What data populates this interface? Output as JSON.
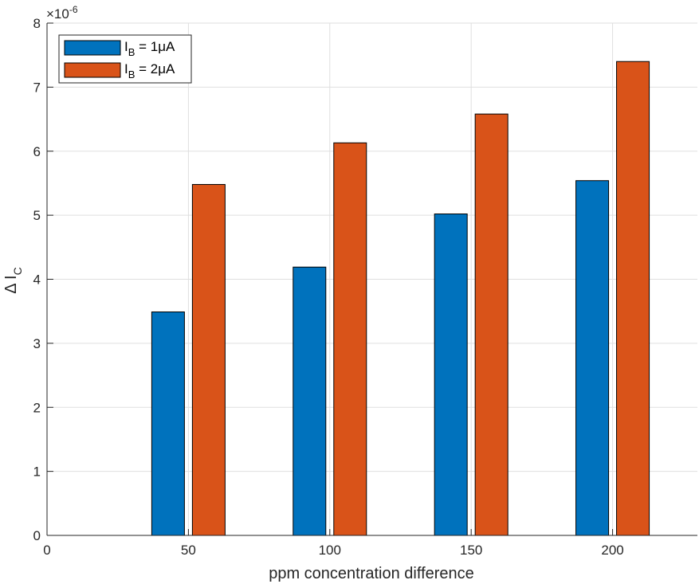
{
  "chart_data": {
    "type": "bar",
    "categories": [
      50,
      100,
      150,
      200
    ],
    "series": [
      {
        "name": "I_B = 1μA",
        "label_main": "I",
        "label_sub": "B",
        "label_rest": " = 1μA",
        "color": "#0072BD",
        "values": [
          3.49e-06,
          4.19e-06,
          5.02e-06,
          5.54e-06
        ]
      },
      {
        "name": "I_B = 2μA",
        "label_main": "I",
        "label_sub": "B",
        "label_rest": " = 2μA",
        "color": "#D95319",
        "values": [
          5.48e-06,
          6.13e-06,
          6.58e-06,
          7.4e-06
        ]
      }
    ],
    "xlabel": "ppm concentration difference",
    "ylabel_main": "Δ I",
    "ylabel_sub": "C",
    "xlim": [
      0,
      230
    ],
    "ylim": [
      0,
      8e-06
    ],
    "xticks": [
      0,
      50,
      100,
      150,
      200
    ],
    "yticks": [
      0,
      1,
      2,
      3,
      4,
      5,
      6,
      7,
      8
    ],
    "y_exponent_base": "×10",
    "y_exponent_power": "-6",
    "grid": true,
    "legend_position": "top-left"
  }
}
